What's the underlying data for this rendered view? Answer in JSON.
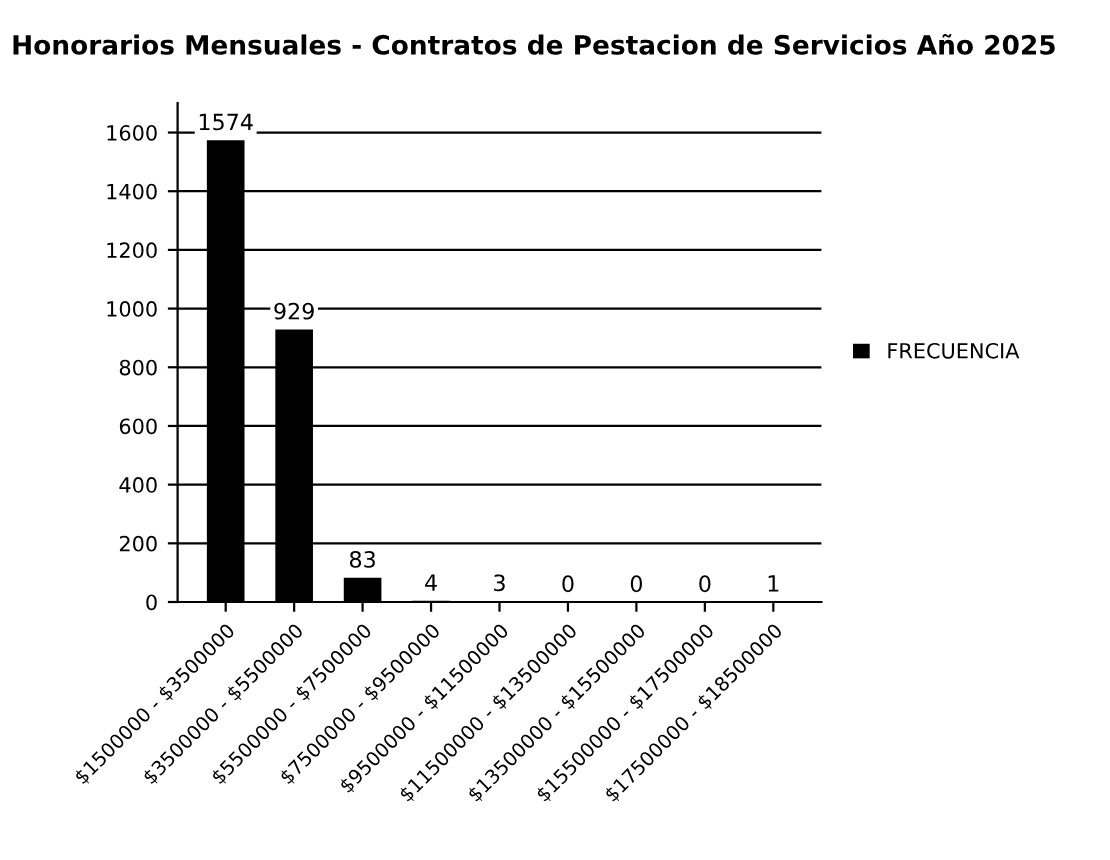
{
  "chart_data": {
    "type": "bar",
    "title": "Honorarios Mensuales - Contratos de Pestacion de Servicios Año 2025",
    "categories": [
      "$1500000 - $3500000",
      "$3500000 - $5500000",
      "$5500000 - $7500000",
      "$7500000 - $9500000",
      "$9500000 - $11500000",
      "$11500000 - $13500000",
      "$13500000 - $15500000",
      "$15500000 - $17500000",
      "$17500000 - $18500000"
    ],
    "series": [
      {
        "name": "FRECUENCIA",
        "color": "#000000",
        "values": [
          1574,
          929,
          83,
          4,
          3,
          0,
          0,
          0,
          1
        ]
      }
    ],
    "ylim": [
      0,
      1700
    ],
    "yticks": [
      0,
      200,
      400,
      600,
      800,
      1000,
      1200,
      1400,
      1600
    ],
    "grid": "y",
    "legend": "right",
    "data_labels": true
  }
}
